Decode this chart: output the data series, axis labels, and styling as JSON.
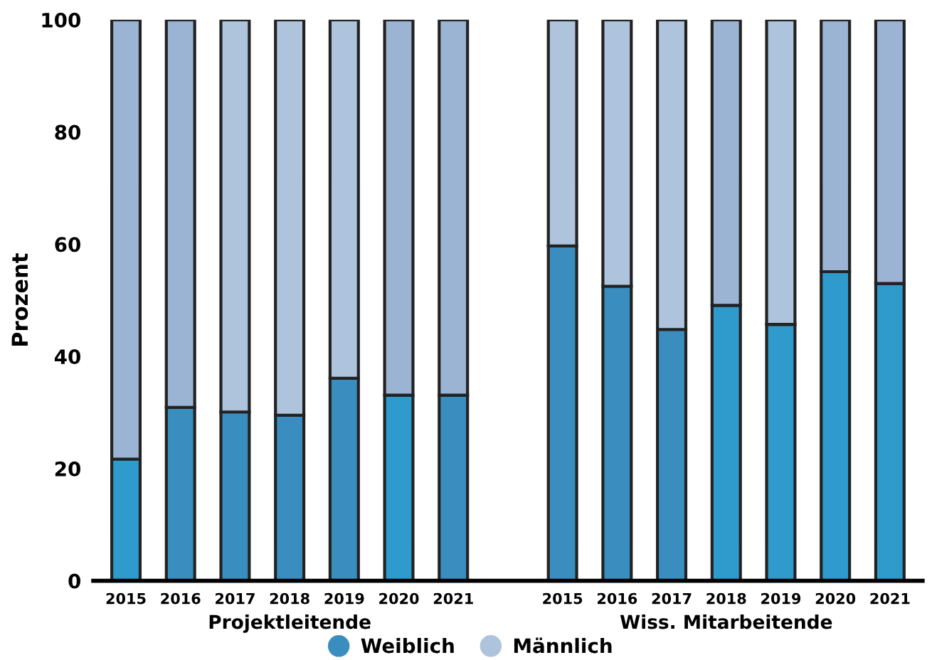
{
  "chart_data": {
    "type": "bar",
    "stacked": true,
    "ylabel": "Prozent",
    "categories": [
      "2015",
      "2016",
      "2017",
      "2018",
      "2019",
      "2020",
      "2021",
      null,
      "2015",
      "2016",
      "2017",
      "2018",
      "2019",
      "2020",
      "2021"
    ],
    "series": [
      {
        "name": "Weiblich",
        "color": "#3a8ebf",
        "values": [
          21.7,
          30.9,
          30.1,
          29.5,
          36.1,
          33.1,
          33.1,
          null,
          59.7,
          52.5,
          44.8,
          49.1,
          45.7,
          55.1,
          53.0
        ],
        "colors": [
          "#2e9bcc",
          "#3a8ebf",
          "#3a8ebf",
          "#3a8ebf",
          "#3a8ebf",
          "#2e9bcc",
          "#3a8ebf",
          null,
          "#3a8ebf",
          "#3a8ebf",
          "#3a8ebf",
          "#2e9bcc",
          "#2e9bcc",
          "#2e9bcc",
          "#2e9bcc"
        ]
      },
      {
        "name": "Männlich",
        "color": "#aec3dc",
        "values": [
          78.3,
          69.1,
          69.9,
          70.5,
          63.9,
          66.9,
          66.9,
          null,
          40.3,
          47.5,
          55.2,
          50.9,
          54.3,
          44.9,
          47.0
        ],
        "colors": [
          "#9bb4d4",
          "#9bb4d4",
          "#aec3dc",
          "#aec3dc",
          "#aec3dc",
          "#9bb4d4",
          "#9bb4d4",
          null,
          "#aec3dc",
          "#aec3dc",
          "#aec3dc",
          "#9bb4d4",
          "#aec3dc",
          "#9bb4d4",
          "#9bb4d4"
        ]
      }
    ],
    "annotations": [
      "Projektleitende",
      "Wiss. Mitarbeitende"
    ],
    "ylim": [
      0,
      100
    ],
    "yticks": [
      0,
      20,
      40,
      60,
      80,
      100
    ],
    "grid": false,
    "legend": "bottom"
  }
}
